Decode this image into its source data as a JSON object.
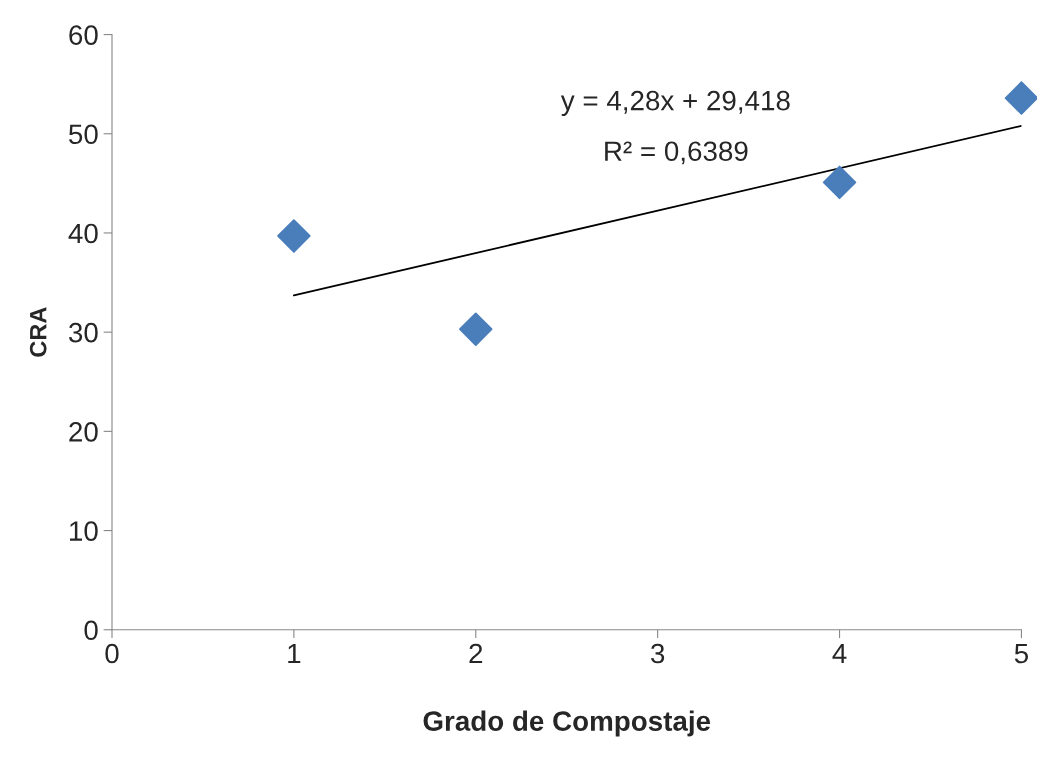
{
  "chart_data": {
    "type": "scatter",
    "xlabel": "Grado de Compostaje",
    "ylabel": "CRA",
    "xlim": [
      0,
      5
    ],
    "xticks": [
      0,
      1,
      2,
      3,
      4,
      5
    ],
    "ylim": [
      0,
      60
    ],
    "yticks": [
      0,
      10,
      20,
      30,
      40,
      50,
      60
    ],
    "grid": false,
    "legend": false,
    "marker": "diamond",
    "series": [
      {
        "color": "#4a7ebb",
        "x": [
          1,
          2,
          4,
          5
        ],
        "values": [
          39.7,
          30.3,
          45.1,
          53.6
        ]
      },
      {
        "type": "line",
        "color": "#000000",
        "marker": "none",
        "line_style": "solid",
        "x": [
          1,
          5
        ],
        "values": [
          33.7,
          50.8
        ]
      }
    ],
    "annotations": [
      "y = 4,28x + 29,418",
      "R² = 0,6389"
    ]
  }
}
